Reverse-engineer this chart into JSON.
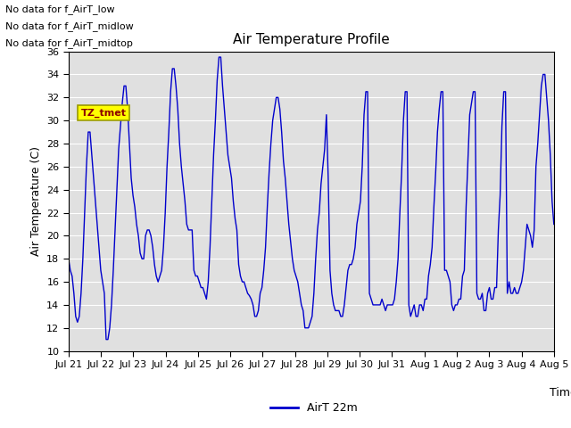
{
  "title": "Air Temperature Profile",
  "ylabel": "Air Temperature (C)",
  "xlabel": "Time",
  "legend_label": "AirT 22m",
  "ylim": [
    10,
    36
  ],
  "yticks": [
    10,
    12,
    14,
    16,
    18,
    20,
    22,
    24,
    26,
    28,
    30,
    32,
    34,
    36
  ],
  "line_color": "#0000cc",
  "bg_color": "#e0e0e0",
  "fig_bg_color": "#ffffff",
  "grid_color": "#ffffff",
  "annotations": [
    "No data for f_AirT_low",
    "No data for f_AirT_midlow",
    "No data for f_AirT_midtop"
  ],
  "tz_label": "TZ_tmet",
  "temperatures": [
    18.0,
    17.0,
    16.5,
    15.0,
    13.0,
    12.5,
    13.0,
    15.0,
    18.0,
    22.0,
    26.0,
    29.0,
    29.0,
    27.0,
    25.0,
    23.0,
    21.0,
    19.0,
    17.0,
    16.0,
    15.0,
    11.0,
    11.0,
    12.0,
    14.0,
    17.0,
    20.5,
    24.0,
    27.5,
    29.5,
    31.5,
    33.0,
    33.0,
    31.0,
    28.0,
    25.0,
    23.5,
    22.5,
    21.0,
    20.0,
    18.5,
    18.0,
    18.0,
    20.0,
    20.5,
    20.5,
    20.0,
    19.0,
    17.5,
    16.5,
    16.0,
    16.5,
    17.0,
    19.0,
    22.0,
    26.0,
    29.0,
    32.5,
    34.5,
    34.5,
    33.0,
    31.0,
    28.0,
    26.0,
    24.5,
    23.0,
    21.0,
    20.5,
    20.5,
    20.5,
    17.0,
    16.5,
    16.5,
    16.0,
    15.5,
    15.5,
    15.0,
    14.5,
    16.0,
    19.0,
    23.0,
    27.0,
    30.0,
    33.5,
    35.5,
    35.5,
    33.0,
    31.0,
    29.0,
    27.0,
    26.0,
    25.0,
    23.0,
    21.5,
    20.5,
    17.5,
    16.5,
    16.0,
    16.0,
    15.5,
    15.0,
    14.8,
    14.5,
    14.0,
    13.0,
    13.0,
    13.5,
    15.0,
    15.5,
    17.0,
    19.0,
    22.5,
    25.5,
    28.0,
    30.0,
    31.0,
    32.0,
    32.0,
    31.0,
    29.0,
    26.5,
    25.0,
    23.0,
    21.0,
    19.5,
    18.0,
    17.0,
    16.5,
    16.0,
    15.0,
    14.0,
    13.5,
    12.0,
    12.0,
    12.0,
    12.5,
    13.0,
    15.0,
    18.0,
    20.5,
    22.0,
    24.5,
    26.0,
    27.5,
    30.5,
    25.0,
    17.0,
    15.0,
    14.0,
    13.5,
    13.5,
    13.5,
    13.0,
    13.0,
    14.0,
    15.5,
    17.0,
    17.5,
    17.5,
    18.0,
    19.0,
    21.0,
    22.0,
    23.0,
    26.0,
    30.5,
    32.5,
    32.5,
    15.0,
    14.5,
    14.0,
    14.0,
    14.0,
    14.0,
    14.0,
    14.5,
    14.0,
    13.5,
    14.0,
    14.0,
    14.0,
    14.0,
    14.5,
    16.0,
    18.0,
    22.0,
    25.5,
    30.0,
    32.5,
    32.5,
    14.0,
    13.0,
    13.5,
    14.0,
    13.0,
    13.0,
    14.0,
    14.0,
    13.5,
    14.5,
    14.5,
    16.5,
    17.5,
    19.0,
    22.5,
    25.5,
    29.0,
    31.0,
    32.5,
    32.5,
    17.0,
    17.0,
    16.5,
    16.0,
    14.0,
    13.5,
    14.0,
    14.0,
    14.5,
    14.5,
    16.5,
    17.0,
    22.5,
    26.5,
    30.5,
    31.5,
    32.5,
    32.5,
    15.0,
    14.5,
    14.5,
    15.0,
    13.5,
    13.5,
    15.0,
    15.5,
    14.5,
    14.5,
    15.5,
    15.5,
    20.5,
    23.5,
    29.5,
    32.5,
    32.5,
    15.0,
    16.0,
    15.0,
    15.0,
    15.5,
    15.0,
    15.0,
    15.5,
    16.0,
    17.0,
    19.0,
    21.0,
    20.5,
    20.0,
    19.0,
    20.5,
    26.0,
    28.0,
    30.5,
    33.0,
    34.0,
    34.0,
    32.0,
    30.0,
    27.0,
    23.0,
    21.0
  ],
  "title_fontsize": 11,
  "axis_fontsize": 9,
  "tick_fontsize": 8,
  "annot_fontsize": 8
}
